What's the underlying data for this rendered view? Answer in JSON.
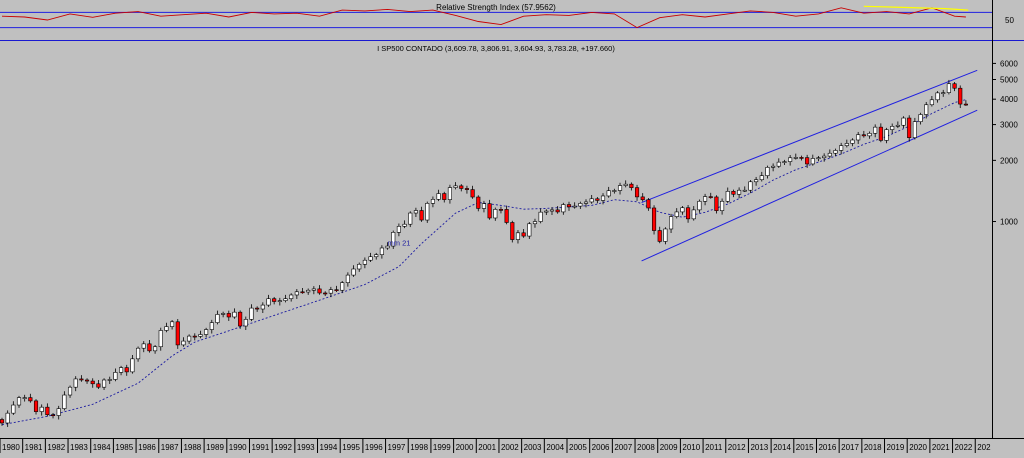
{
  "chart_data": [
    {
      "type": "line",
      "title": "Relative Strength Index (57.9562)",
      "ylabel": "",
      "scale": "linear",
      "ylim": [
        0,
        100
      ],
      "reference_lines": [
        30,
        70
      ],
      "y_ticks": [
        "50"
      ],
      "series": [
        {
          "name": "",
          "color": "#c80000",
          "x": [
            1980,
            1981,
            1982,
            1983,
            1984,
            1985,
            1986,
            1987,
            1988,
            1989,
            1990,
            1991,
            1992,
            1993,
            1994,
            1995,
            1996,
            1997,
            1998,
            1999,
            2000,
            2001,
            2002,
            2003,
            2004,
            2005,
            2006,
            2007,
            2008,
            2009,
            2010,
            2011,
            2012,
            2013,
            2014,
            2015,
            2016,
            2017,
            2018,
            2019,
            2020,
            2021,
            2022,
            2022.5
          ],
          "values": [
            60,
            58,
            50,
            66,
            57,
            68,
            72,
            60,
            64,
            68,
            58,
            70,
            66,
            68,
            60,
            76,
            74,
            78,
            72,
            76,
            62,
            46,
            38,
            60,
            64,
            62,
            70,
            66,
            30,
            56,
            64,
            58,
            66,
            74,
            70,
            60,
            66,
            82,
            68,
            72,
            66,
            82,
            60,
            58
          ]
        },
        {
          "name": "",
          "color": "#ffff00",
          "x": [
            2018,
            2021.6,
            2022.6
          ],
          "values": [
            86,
            80,
            76
          ]
        }
      ]
    },
    {
      "type": "candlestick",
      "title": "I SP500 CONTADO (3,609.78, 3,806.91, 3,604.93, 3,783.28, +197.660)",
      "scale": "log",
      "ylim": [
        88,
        6600
      ],
      "y_ticks": [
        1000,
        2000,
        3000,
        4000,
        5000,
        6000
      ],
      "x_ticks": [
        "1980",
        "1981",
        "1982",
        "1983",
        "1984",
        "1985",
        "1986",
        "1987",
        "1988",
        "1989",
        "1990",
        "1991",
        "1992",
        "1993",
        "1994",
        "1995",
        "1996",
        "1997",
        "1998",
        "1999",
        "2000",
        "2001",
        "2002",
        "2003",
        "2004",
        "2005",
        "2006",
        "2007",
        "2008",
        "2009",
        "2010",
        "2011",
        "2012",
        "2013",
        "2014",
        "2015",
        "2016",
        "2017",
        "2018",
        "2019",
        "2020",
        "2021",
        "2022",
        "202"
      ],
      "candle_colors": {
        "up": "#ffffff",
        "down": "#ff0000",
        "wick": "#000000"
      },
      "series": [
        {
          "name": "SP500",
          "x": [
            1980,
            1980.25,
            1980.5,
            1980.75,
            1981,
            1981.25,
            1981.5,
            1981.75,
            1982,
            1982.25,
            1982.5,
            1982.75,
            1983,
            1983.25,
            1983.5,
            1983.75,
            1984,
            1984.25,
            1984.5,
            1984.75,
            1985,
            1985.25,
            1985.5,
            1985.75,
            1986,
            1986.25,
            1986.5,
            1986.75,
            1987,
            1987.25,
            1987.5,
            1987.75,
            1988,
            1988.25,
            1988.5,
            1988.75,
            1989,
            1989.25,
            1989.5,
            1989.75,
            1990,
            1990.25,
            1990.5,
            1990.75,
            1991,
            1991.25,
            1991.5,
            1991.75,
            1992,
            1992.25,
            1992.5,
            1992.75,
            1993,
            1993.25,
            1993.5,
            1993.75,
            1994,
            1994.25,
            1994.5,
            1994.75,
            1995,
            1995.25,
            1995.5,
            1995.75,
            1996,
            1996.25,
            1996.5,
            1996.75,
            1997,
            1997.25,
            1997.5,
            1997.75,
            1998,
            1998.25,
            1998.5,
            1998.75,
            1999,
            1999.25,
            1999.5,
            1999.75,
            2000,
            2000.25,
            2000.5,
            2000.75,
            2001,
            2001.25,
            2001.5,
            2001.75,
            2002,
            2002.25,
            2002.5,
            2002.75,
            2003,
            2003.25,
            2003.5,
            2003.75,
            2004,
            2004.25,
            2004.5,
            2004.75,
            2005,
            2005.25,
            2005.5,
            2005.75,
            2006,
            2006.25,
            2006.5,
            2006.75,
            2007,
            2007.25,
            2007.5,
            2007.75,
            2008,
            2008.25,
            2008.5,
            2008.75,
            2009,
            2009.25,
            2009.5,
            2009.75,
            2010,
            2010.25,
            2010.5,
            2010.75,
            2011,
            2011.25,
            2011.5,
            2011.75,
            2012,
            2012.25,
            2012.5,
            2012.75,
            2013,
            2013.25,
            2013.5,
            2013.75,
            2014,
            2014.25,
            2014.5,
            2014.75,
            2015,
            2015.25,
            2015.5,
            2015.75,
            2016,
            2016.25,
            2016.5,
            2016.75,
            2017,
            2017.25,
            2017.5,
            2017.75,
            2018,
            2018.25,
            2018.5,
            2018.75,
            2019,
            2019.25,
            2019.5,
            2019.75,
            2020,
            2020.25,
            2020.5,
            2020.75,
            2021,
            2021.25,
            2021.5,
            2021.75,
            2022,
            2022.25,
            2022.5
          ],
          "close": [
            102,
            114,
            125,
            136,
            136,
            131,
            116,
            122,
            112,
            111,
            120,
            140,
            153,
            168,
            166,
            164,
            159,
            153,
            166,
            167,
            181,
            191,
            182,
            211,
            238,
            250,
            231,
            242,
            291,
            304,
            321,
            247,
            258,
            273,
            272,
            278,
            294,
            318,
            349,
            353,
            339,
            358,
            306,
            330,
            375,
            371,
            388,
            417,
            404,
            408,
            417,
            435,
            451,
            450,
            459,
            466,
            445,
            444,
            462,
            459,
            500,
            545,
            584,
            616,
            645,
            671,
            687,
            741,
            757,
            885,
            947,
            970,
            1101,
            1133,
            1017,
            1229,
            1286,
            1373,
            1282,
            1469,
            1498,
            1454,
            1436,
            1320,
            1160,
            1224,
            1041,
            1148,
            1147,
            989,
            815,
            880,
            848,
            975,
            1000,
            1112,
            1126,
            1141,
            1115,
            1212,
            1181,
            1191,
            1228,
            1248,
            1294,
            1270,
            1336,
            1418,
            1421,
            1503,
            1527,
            1468,
            1322,
            1280,
            1166,
            903,
            798,
            919,
            1057,
            1115,
            1169,
            1031,
            1141,
            1258,
            1326,
            1321,
            1131,
            1258,
            1408,
            1362,
            1426,
            1426,
            1569,
            1606,
            1681,
            1848,
            1872,
            1960,
            1972,
            2059,
            2068,
            2063,
            1920,
            2044,
            2060,
            2099,
            2168,
            2239,
            2363,
            2423,
            2519,
            2674,
            2640,
            2718,
            2914,
            2507,
            2834,
            2942,
            2977,
            3231,
            2585,
            3100,
            3363,
            3756,
            3973,
            4297,
            4308,
            4766,
            4530,
            3785,
            3783
          ]
        }
      ],
      "annotations": [
        {
          "text": "mm 21",
          "x": 1997.0,
          "y": 760
        }
      ],
      "moving_average": {
        "name": "mm 21",
        "color": "#1a1aa0",
        "style": "dashed",
        "x": [
          1980,
          1982,
          1984,
          1986,
          1987.5,
          1988.5,
          1990,
          1992,
          1994,
          1996,
          1997.5,
          1998.5,
          2000,
          2001,
          2002,
          2003,
          2004,
          2005,
          2006,
          2007,
          2008,
          2009,
          2010,
          2011,
          2012,
          2013,
          2014,
          2015,
          2016,
          2017,
          2018,
          2019,
          2020,
          2021,
          2022,
          2022.5
        ],
        "values": [
          100,
          110,
          126,
          160,
          218,
          255,
          290,
          345,
          410,
          490,
          600,
          780,
          1100,
          1240,
          1200,
          1150,
          1160,
          1180,
          1200,
          1280,
          1250,
          1110,
          1050,
          1110,
          1220,
          1380,
          1600,
          1800,
          1960,
          2150,
          2400,
          2620,
          2950,
          3400,
          3850,
          3980
        ]
      },
      "trend_channel": {
        "color": "#2020e0",
        "lines": [
          {
            "x": [
              2008.2,
              2023.0
            ],
            "values": [
              1240,
              5550
            ]
          },
          {
            "x": [
              2008.2,
              2023.0
            ],
            "values": [
              640,
              3530
            ]
          }
        ]
      }
    }
  ]
}
